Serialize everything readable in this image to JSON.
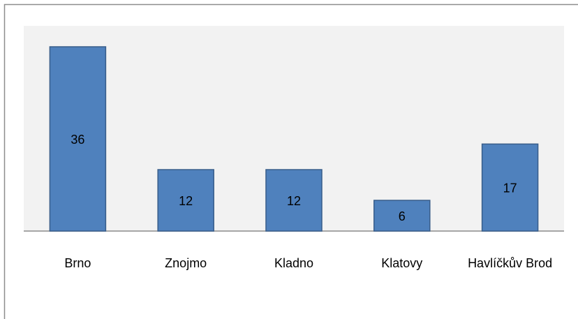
{
  "chart_data": {
    "type": "bar",
    "categories": [
      "Brno",
      "Znojmo",
      "Kladno",
      "Klatovy",
      "Havlíčkův Brod"
    ],
    "values": [
      36,
      12,
      12,
      6,
      17
    ],
    "color": "#4f81bd"
  }
}
